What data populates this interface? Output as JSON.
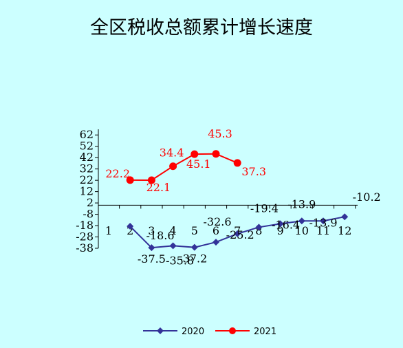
{
  "chart_data": {
    "type": "line",
    "title": "全区税收总额累计增长速度",
    "categories": [
      "1",
      "2",
      "3",
      "4",
      "5",
      "6",
      "7",
      "8",
      "9",
      "10",
      "11",
      "12"
    ],
    "y_ticks": [
      "62",
      "52",
      "42",
      "32",
      "22",
      "12",
      "2",
      "-8",
      "-18",
      "-28",
      "-38"
    ],
    "ylim": [
      -38,
      67
    ],
    "grid": false,
    "legend_position": "bottom",
    "series": [
      {
        "name": "2020",
        "color": "#333399",
        "marker": "diamond",
        "x": [
          "2",
          "3",
          "4",
          "5",
          "6",
          "7",
          "8",
          "9",
          "10",
          "11",
          "12"
        ],
        "values": [
          -18.6,
          -37.5,
          -35.8,
          -37.2,
          -32.6,
          -25.2,
          -19.4,
          -16.4,
          -13.9,
          -13.9,
          -10.2
        ],
        "labels": [
          "",
          "-37.5",
          "-35.8",
          "-37.2",
          "-32.6",
          "-25.2",
          "-19.4",
          "-16.4",
          "-13.9",
          "-13.9",
          "-10.2"
        ]
      },
      {
        "name": "2021",
        "color": "#ff0000",
        "marker": "circle",
        "x": [
          "2",
          "3",
          "4",
          "5",
          "6",
          "7"
        ],
        "values": [
          22.2,
          22.1,
          34.4,
          45.1,
          45.3,
          37.3
        ],
        "labels": [
          "22.2",
          "22.1",
          "34.4",
          "45.1",
          "45.3",
          "37.3"
        ]
      }
    ],
    "extra_labels": [
      "-18.6"
    ]
  }
}
